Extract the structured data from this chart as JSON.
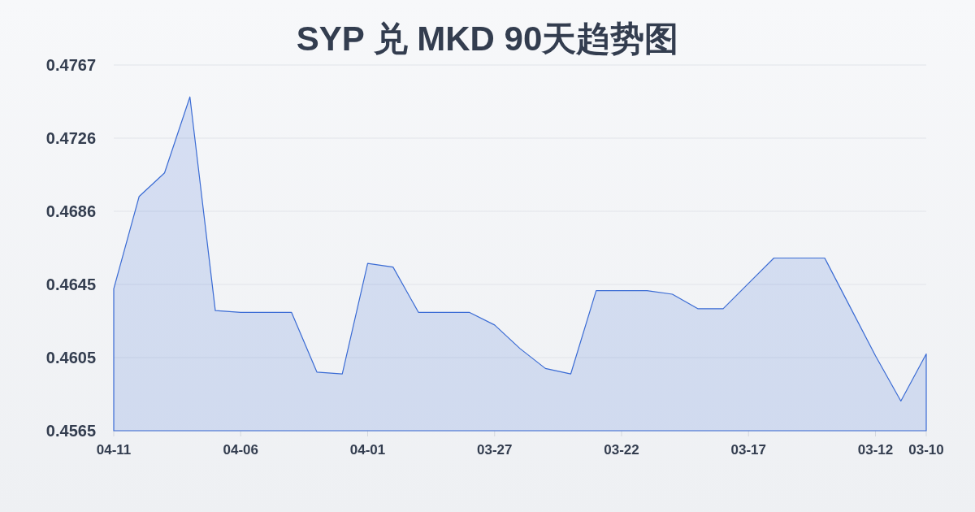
{
  "chart_data": {
    "type": "area",
    "title": "SYP 兑 MKD 90天趋势图",
    "categories": [
      "04-11",
      null,
      null,
      null,
      null,
      "04-06",
      null,
      null,
      null,
      null,
      "04-01",
      null,
      null,
      null,
      null,
      "03-27",
      null,
      null,
      null,
      null,
      "03-22",
      null,
      null,
      null,
      null,
      "03-17",
      null,
      null,
      null,
      null,
      "03-12",
      null,
      "03-10"
    ],
    "values": [
      0.4643,
      0.4694,
      0.4707,
      0.4749,
      0.4631,
      0.463,
      0.463,
      0.463,
      0.4597,
      0.4596,
      0.4657,
      0.4655,
      0.463,
      0.463,
      0.463,
      0.4623,
      0.461,
      0.4599,
      0.4596,
      0.4642,
      0.4642,
      0.4642,
      0.464,
      0.4632,
      0.4632,
      0.4646,
      0.466,
      0.466,
      0.466,
      0.4633,
      0.4606,
      0.4581,
      0.4607
    ],
    "color": "#3a6bd4",
    "ylim": [
      0.45646,
      0.47666
    ],
    "yticks": [
      {
        "value": 0.45646,
        "label": "0.4565"
      },
      {
        "value": 0.4605,
        "label": "0.4605"
      },
      {
        "value": 0.46454,
        "label": "0.4645"
      },
      {
        "value": 0.46858,
        "label": "0.4686"
      },
      {
        "value": 0.47262,
        "label": "0.4726"
      },
      {
        "value": 0.47666,
        "label": "0.4767"
      }
    ],
    "grid": "y"
  }
}
